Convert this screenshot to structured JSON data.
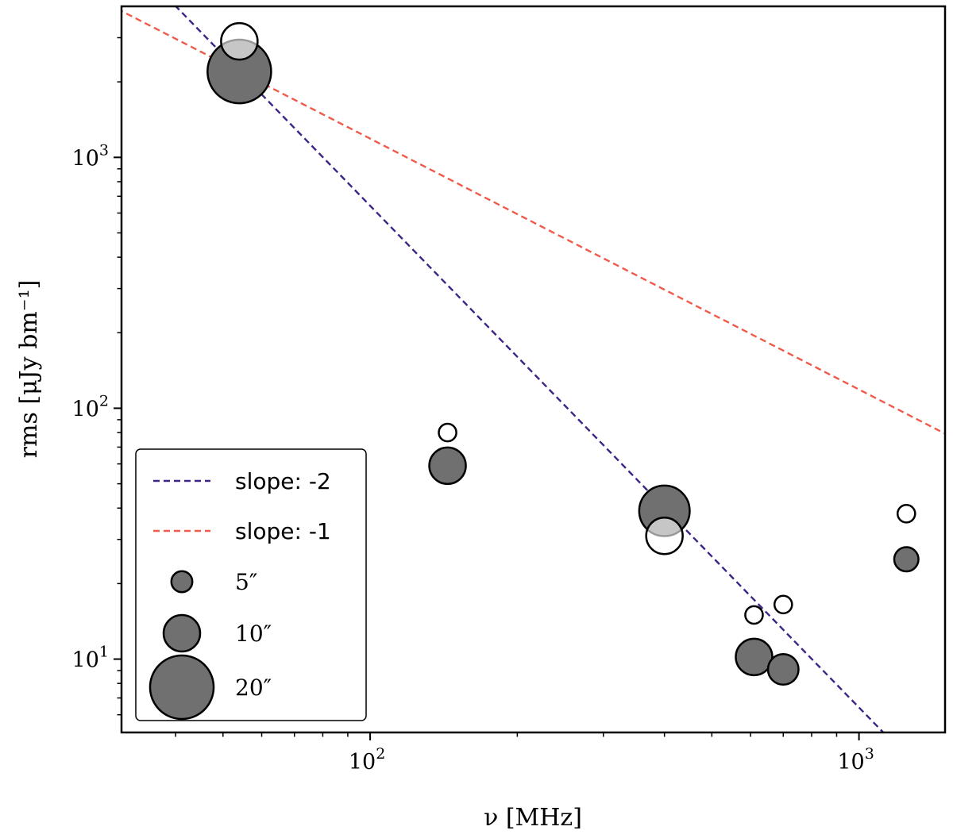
{
  "chart_data": {
    "type": "scatter",
    "xlabel": "ν [MHz]",
    "ylabel": "rms [μJy bm⁻¹]",
    "xscale": "log",
    "yscale": "log",
    "xlim": [
      31,
      1500
    ],
    "ylim": [
      5.1,
      4000
    ],
    "x_ticks": [
      {
        "value": 100,
        "base": "10",
        "exp": "2"
      },
      {
        "value": 1000,
        "base": "10",
        "exp": "3"
      }
    ],
    "y_ticks": [
      {
        "value": 10,
        "base": "10",
        "exp": "1"
      },
      {
        "value": 100,
        "base": "10",
        "exp": "2"
      },
      {
        "value": 1000,
        "base": "10",
        "exp": "3"
      }
    ],
    "grid": false,
    "legend_placement": "lower-left",
    "lines": [
      {
        "name": "slope: -2",
        "slope": -2,
        "anchor": [
          54,
          2200
        ],
        "color": "#3d2486"
      },
      {
        "name": "slope: -1",
        "slope": -1,
        "anchor": [
          54,
          2200
        ],
        "color": "#f05a4a"
      }
    ],
    "filled_series": {
      "color": "#707070",
      "points": [
        {
          "x": 54,
          "y": 2200,
          "resolution_arcsec": 20
        },
        {
          "x": 144,
          "y": 59,
          "resolution_arcsec": 10
        },
        {
          "x": 400,
          "y": 39,
          "resolution_arcsec": 15
        },
        {
          "x": 610,
          "y": 10.2,
          "resolution_arcsec": 10
        },
        {
          "x": 700,
          "y": 9.1,
          "resolution_arcsec": 8
        },
        {
          "x": 1250,
          "y": 25,
          "resolution_arcsec": 6
        }
      ]
    },
    "open_series": {
      "color": "#ffffff",
      "points": [
        {
          "x": 54,
          "y": 2900,
          "resolution_arcsec": 10
        },
        {
          "x": 144,
          "y": 80,
          "resolution_arcsec": 4
        },
        {
          "x": 400,
          "y": 31,
          "resolution_arcsec": 10
        },
        {
          "x": 610,
          "y": 15,
          "resolution_arcsec": 4
        },
        {
          "x": 700,
          "y": 16.5,
          "resolution_arcsec": 4
        },
        {
          "x": 1250,
          "y": 38,
          "resolution_arcsec": 4
        }
      ]
    },
    "legend": [
      {
        "kind": "line",
        "label": "slope: -2",
        "color": "#3d2486"
      },
      {
        "kind": "line",
        "label": "slope: -1",
        "color": "#f05a4a"
      },
      {
        "kind": "size",
        "label": "5″",
        "resolution_arcsec": 5
      },
      {
        "kind": "size",
        "label": "10″",
        "resolution_arcsec": 10
      },
      {
        "kind": "size",
        "label": "20″",
        "resolution_arcsec": 20
      }
    ]
  }
}
